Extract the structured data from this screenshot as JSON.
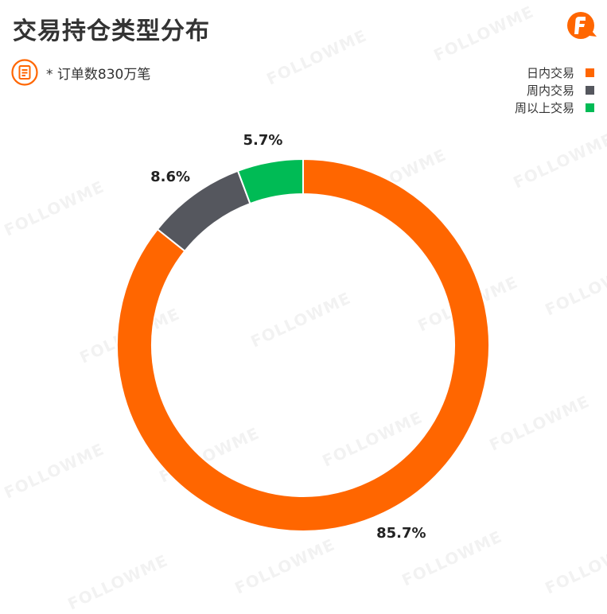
{
  "title": "交易持仓类型分布",
  "subtitle": "* 订单数830万笔",
  "logo": {
    "icon": "followme-logo-icon",
    "color": "#ff6600"
  },
  "subtitle_icon": "document-icon",
  "watermark": "FOLLOWME",
  "chart_data": {
    "type": "pie",
    "variant": "donut",
    "title": "交易持仓类型分布",
    "legend_position": "top-right",
    "start_angle_deg": 0,
    "direction": "clockwise",
    "series": [
      {
        "name": "日内交易",
        "value": 85.7,
        "label": "85.7%",
        "color": "#ff6600"
      },
      {
        "name": "周内交易",
        "value": 8.6,
        "label": "8.6%",
        "color": "#55575e"
      },
      {
        "name": "周以上交易",
        "value": 5.7,
        "label": "5.7%",
        "color": "#00bb55"
      }
    ]
  }
}
